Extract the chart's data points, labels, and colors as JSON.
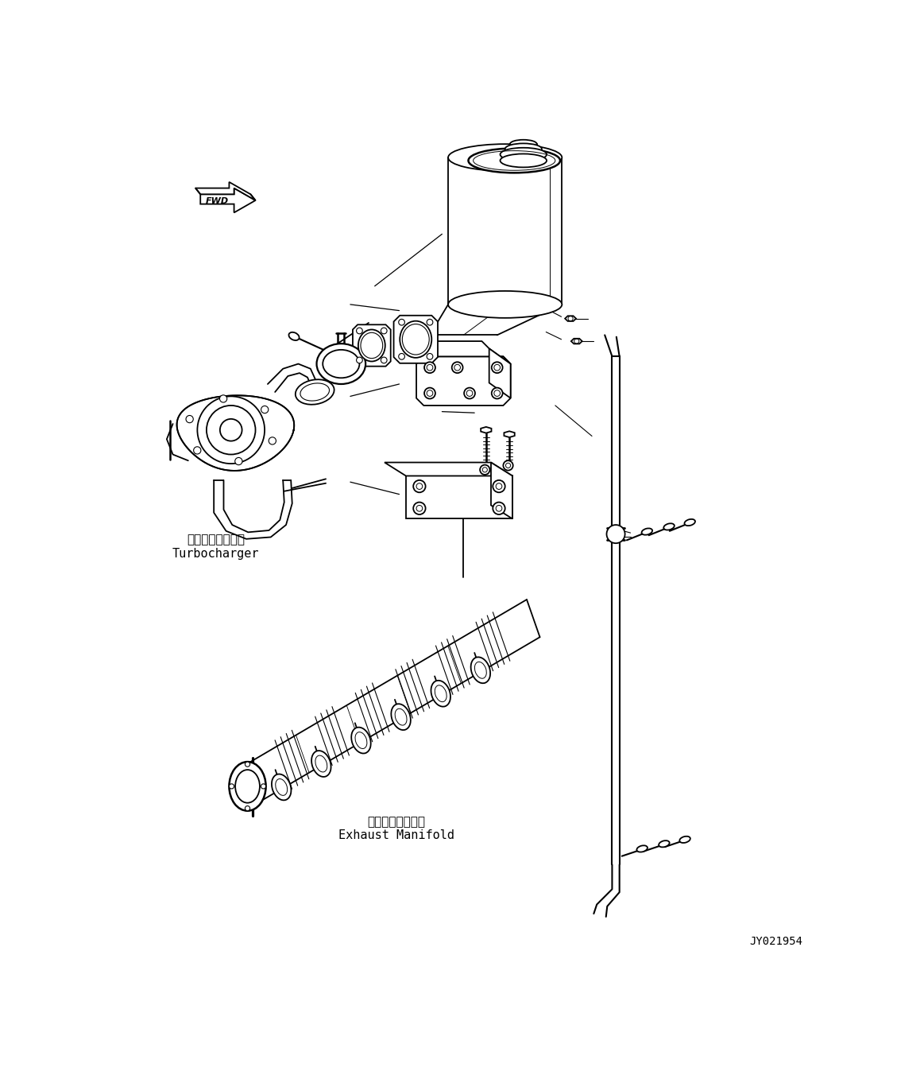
{
  "bg_color": "#ffffff",
  "line_color": "#000000",
  "lw": 1.3,
  "fig_width": 11.63,
  "fig_height": 13.62,
  "dpi": 100,
  "part_id": "JY021954",
  "labels": {
    "turbo_jp": "ターボチャージャ",
    "turbo_en": "Turbocharger",
    "exhaust_jp": "排気マニホールド",
    "exhaust_en": "Exhaust Manifold"
  }
}
